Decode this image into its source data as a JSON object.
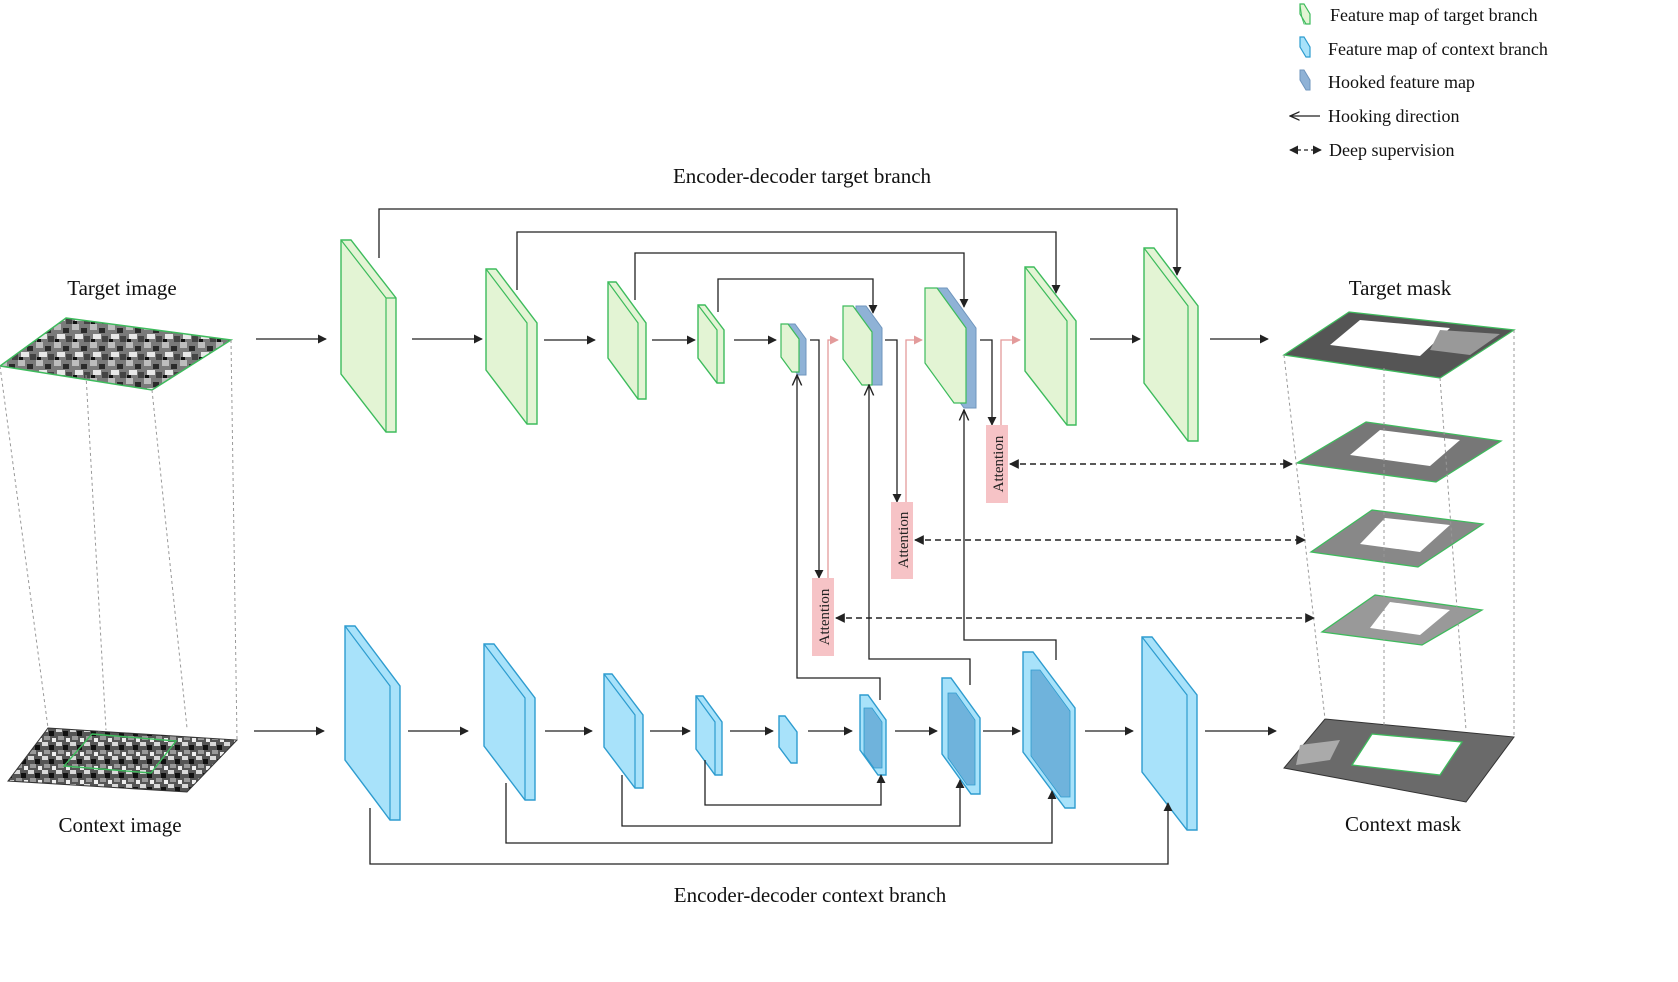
{
  "colors": {
    "target_fill": "#e3f4d4",
    "target_stroke": "#3dbb5c",
    "context_fill": "#a8e2fa",
    "context_stroke": "#2e9ccf",
    "hooked_fill": "#8fb2d6",
    "attention_fill": "#f6c3c6",
    "attention_line": "#e39b9b",
    "line": "#222222"
  },
  "legend": {
    "target_map": "Feature map of target branch",
    "context_map": "Feature map of context branch",
    "hooked_map": "Hooked feature map",
    "hooking_direction": "Hooking direction",
    "deep_supervision": "Deep supervision",
    "icons": [
      "target-map-icon",
      "context-map-icon",
      "hooked-map-icon",
      "left-arrow-icon",
      "double-dashed-arrow-icon"
    ]
  },
  "labels": {
    "target_branch": "Encoder-decoder target branch",
    "context_branch": "Encoder-decoder context branch",
    "target_image": "Target image",
    "context_image": "Context image",
    "target_mask": "Target mask",
    "context_mask": "Context mask"
  },
  "attention": [
    "Attention",
    "Attention",
    "Attention"
  ]
}
